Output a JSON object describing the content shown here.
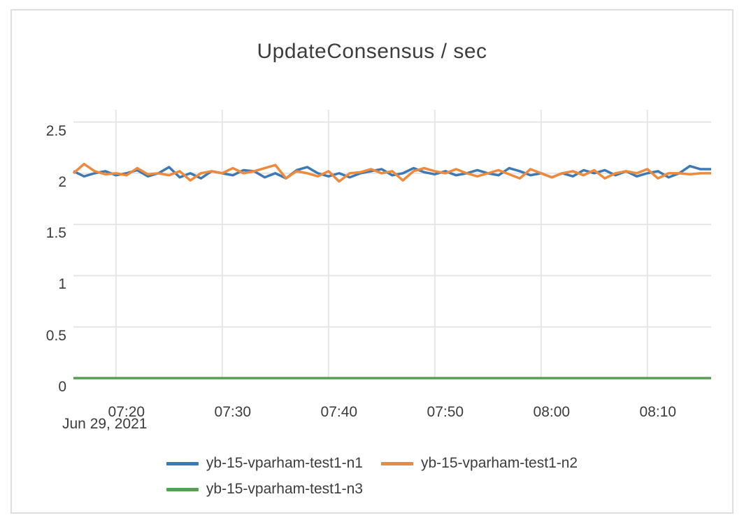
{
  "chart_data": {
    "type": "line",
    "title": "UpdateConsensus / sec",
    "xlabel": "",
    "ylabel": "",
    "x_axis_date_label": "Jun 29, 2021",
    "grid": "on",
    "legend_position": "bottom-center",
    "y_ticks": [
      0,
      0.5,
      1,
      1.5,
      2,
      2.5
    ],
    "y_tick_labels": [
      "0",
      "0.5",
      "1",
      "1.5",
      "2",
      "2.5"
    ],
    "y_domain": [
      0,
      2.62
    ],
    "x_domain": [
      0,
      60
    ],
    "x_ticks": [
      {
        "label": "07:20",
        "minute": 4
      },
      {
        "label": "07:30",
        "minute": 14
      },
      {
        "label": "07:40",
        "minute": 24
      },
      {
        "label": "07:50",
        "minute": 34
      },
      {
        "label": "08:00",
        "minute": 44
      },
      {
        "label": "08:10",
        "minute": 54
      }
    ],
    "x": [
      0,
      1,
      2,
      3,
      4,
      5,
      6,
      7,
      8,
      9,
      10,
      11,
      12,
      13,
      14,
      15,
      16,
      17,
      18,
      19,
      20,
      21,
      22,
      23,
      24,
      25,
      26,
      27,
      28,
      29,
      30,
      31,
      32,
      33,
      34,
      35,
      36,
      37,
      38,
      39,
      40,
      41,
      42,
      43,
      44,
      45,
      46,
      47,
      48,
      49,
      50,
      51,
      52,
      53,
      54,
      55,
      56,
      57,
      58,
      59,
      60
    ],
    "grid_color": "#e6e6e6",
    "series": [
      {
        "name": "yb-15-vparham-test1-n1",
        "color": "#3e79b4",
        "values": [
          2.02,
          1.97,
          2.0,
          2.02,
          1.98,
          2.0,
          2.03,
          1.97,
          2.0,
          2.06,
          1.96,
          2.0,
          1.95,
          2.02,
          2.0,
          1.98,
          2.03,
          2.02,
          1.96,
          2.0,
          1.95,
          2.03,
          2.06,
          2.0,
          1.97,
          2.0,
          1.96,
          2.0,
          2.02,
          2.04,
          1.98,
          2.0,
          2.05,
          2.01,
          1.99,
          2.02,
          1.98,
          2.0,
          2.03,
          2.0,
          1.98,
          2.05,
          2.02,
          1.98,
          2.0,
          1.96,
          2.0,
          1.97,
          2.03,
          2.0,
          2.03,
          1.98,
          2.02,
          1.97,
          2.0,
          2.02,
          1.96,
          2.0,
          2.07,
          2.04,
          2.04
        ]
      },
      {
        "name": "yb-15-vparham-test1-n2",
        "color": "#ef8a3c",
        "values": [
          2.0,
          2.09,
          2.02,
          1.99,
          2.0,
          1.98,
          2.05,
          1.99,
          2.0,
          1.98,
          2.02,
          1.93,
          2.0,
          2.02,
          2.0,
          2.05,
          2.0,
          2.02,
          2.05,
          2.08,
          1.95,
          2.02,
          2.0,
          1.97,
          2.02,
          1.92,
          2.0,
          2.01,
          2.04,
          2.0,
          2.02,
          1.93,
          2.02,
          2.05,
          2.02,
          2.0,
          2.04,
          2.0,
          1.97,
          2.0,
          2.03,
          1.99,
          1.95,
          2.04,
          2.0,
          1.96,
          2.0,
          2.02,
          1.98,
          2.03,
          1.95,
          2.0,
          2.02,
          2.0,
          2.04,
          1.95,
          2.0,
          2.0,
          1.99,
          2.0,
          2.0
        ]
      },
      {
        "name": "yb-15-vparham-test1-n3",
        "color": "#57a052",
        "values": [
          0,
          0,
          0,
          0,
          0,
          0,
          0,
          0,
          0,
          0,
          0,
          0,
          0,
          0,
          0,
          0,
          0,
          0,
          0,
          0,
          0,
          0,
          0,
          0,
          0,
          0,
          0,
          0,
          0,
          0,
          0,
          0,
          0,
          0,
          0,
          0,
          0,
          0,
          0,
          0,
          0,
          0,
          0,
          0,
          0,
          0,
          0,
          0,
          0,
          0,
          0,
          0,
          0,
          0,
          0,
          0,
          0,
          0,
          0,
          0,
          0
        ]
      }
    ]
  }
}
